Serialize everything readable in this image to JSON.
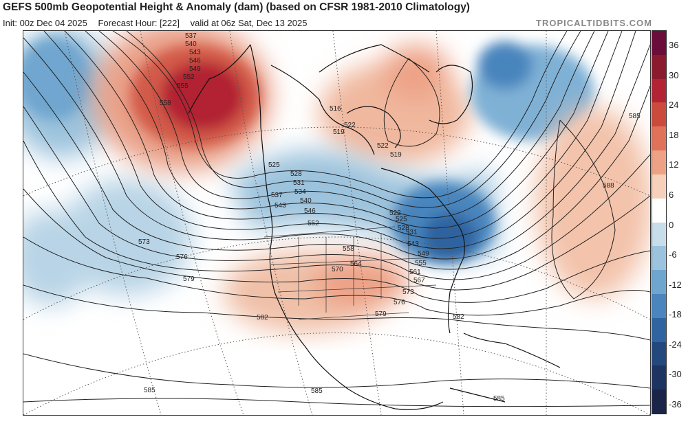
{
  "header": {
    "title": "GEFS 500mb Geopotential Height & Anomaly (dam) (based on CFSR 1981-2010 Climatology)",
    "init": "Init: 00z Dec 04 2025",
    "forecast_hour": "Forecast Hour: [222]",
    "valid": "valid at 06z Sat, Dec 13 2025",
    "brand": "TROPICALTIDBITS.COM"
  },
  "legend": {
    "ticks": [
      "36",
      "30",
      "24",
      "18",
      "12",
      "6",
      "0",
      "-6",
      "-12",
      "-18",
      "-24",
      "-30",
      "-36"
    ],
    "colors": [
      "#6b0d3a",
      "#8c1a2e",
      "#b22433",
      "#cc4a3c",
      "#e0725a",
      "#eda286",
      "#f6d0bb",
      "#ffffff",
      "#c7dde9",
      "#9cc3dd",
      "#6fa6cf",
      "#4a85bd",
      "#2f64a0",
      "#23487d",
      "#1d3360",
      "#1a2348"
    ]
  },
  "map": {
    "contour_labels": [
      {
        "text": "537"
      },
      {
        "text": "540"
      },
      {
        "text": "543"
      },
      {
        "text": "546"
      },
      {
        "text": "549"
      },
      {
        "text": "552"
      },
      {
        "text": "555"
      },
      {
        "text": "558"
      },
      {
        "text": "516"
      },
      {
        "text": "519"
      },
      {
        "text": "522"
      },
      {
        "text": "519"
      },
      {
        "text": "522"
      },
      {
        "text": "525"
      },
      {
        "text": "528"
      },
      {
        "text": "531"
      },
      {
        "text": "534"
      },
      {
        "text": "537"
      },
      {
        "text": "540"
      },
      {
        "text": "543"
      },
      {
        "text": "546"
      },
      {
        "text": "552"
      },
      {
        "text": "558"
      },
      {
        "text": "564"
      },
      {
        "text": "570"
      },
      {
        "text": "573"
      },
      {
        "text": "576"
      },
      {
        "text": "579"
      },
      {
        "text": "582"
      },
      {
        "text": "585"
      },
      {
        "text": "588"
      },
      {
        "text": "522"
      },
      {
        "text": "525"
      },
      {
        "text": "528"
      },
      {
        "text": "531"
      },
      {
        "text": "543"
      },
      {
        "text": "549"
      },
      {
        "text": "555"
      },
      {
        "text": "561"
      },
      {
        "text": "567"
      },
      {
        "text": "573"
      },
      {
        "text": "576"
      },
      {
        "text": "579"
      },
      {
        "text": "582"
      },
      {
        "text": "585"
      },
      {
        "text": "585"
      },
      {
        "text": "585"
      }
    ]
  }
}
